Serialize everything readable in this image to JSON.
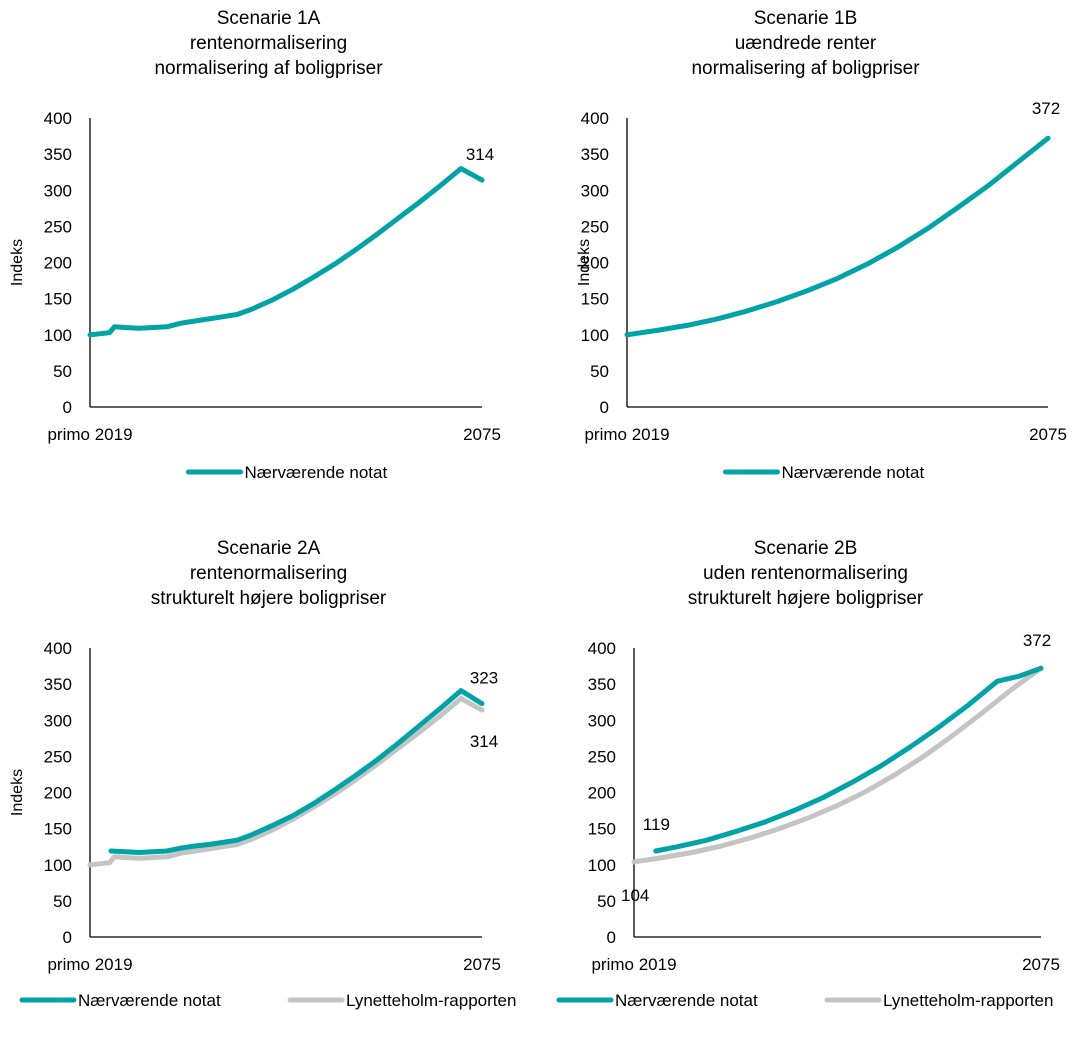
{
  "page": {
    "background": "#ffffff"
  },
  "colors": {
    "primary": "#00a3a6",
    "secondary": "#c4c4c4"
  },
  "chart_data": [
    {
      "type": "line",
      "title": [
        "Scenarie 1A",
        "rentenormalisering",
        "normalisering af boligpriser"
      ],
      "ylabel": "Indeks",
      "ylim": [
        0,
        400
      ],
      "yticks": [
        "0",
        "50",
        "100",
        "150",
        "200",
        "250",
        "300",
        "350",
        "400"
      ],
      "xlim": [
        2019,
        2075
      ],
      "xticks": [
        "primo 2019",
        "2075"
      ],
      "series": [
        {
          "name": "Nærværende notat",
          "color": "#00a3a6",
          "x": [
            2019,
            2021,
            2021.8,
            2022.5,
            2024,
            2026,
            2028,
            2030,
            2032,
            2034,
            2036,
            2038,
            2040,
            2042,
            2045,
            2048,
            2051,
            2054,
            2057,
            2060,
            2063,
            2066,
            2069,
            2072,
            2075
          ],
          "values": [
            100,
            102,
            103,
            111,
            110,
            109,
            110,
            111,
            116,
            119,
            122,
            125,
            128,
            135,
            148,
            163,
            180,
            198,
            218,
            239,
            261,
            283,
            306,
            330,
            314
          ]
        }
      ],
      "annotations": [
        {
          "text": "314",
          "x": 2075,
          "y": 314
        }
      ],
      "legend": "bottom"
    },
    {
      "type": "line",
      "title": [
        "Scenarie 1B",
        "uændrede renter",
        "normalisering af boligpriser"
      ],
      "ylabel": "Indeks",
      "ylim": [
        0,
        400
      ],
      "yticks": [
        "0",
        "50",
        "100",
        "150",
        "200",
        "250",
        "300",
        "350",
        "400"
      ],
      "xlim": [
        2019,
        2075
      ],
      "xticks": [
        "primo 2019",
        "2075"
      ],
      "series": [
        {
          "name": "Nærværende notat",
          "color": "#00a3a6",
          "x": [
            2019,
            2023,
            2027,
            2031,
            2035,
            2039,
            2043,
            2047,
            2051,
            2055,
            2059,
            2063,
            2067,
            2071,
            2075
          ],
          "values": [
            100,
            106,
            113,
            122,
            133,
            146,
            161,
            178,
            198,
            221,
            247,
            276,
            306,
            339,
            372
          ]
        }
      ],
      "annotations": [
        {
          "text": "372",
          "x": 2075,
          "y": 372
        }
      ],
      "legend": "bottom"
    },
    {
      "type": "line",
      "title": [
        "Scenarie 2A",
        "rentenormalisering",
        "strukturelt højere boligpriser"
      ],
      "ylabel": "Indeks",
      "ylim": [
        0,
        400
      ],
      "yticks": [
        "0",
        "50",
        "100",
        "150",
        "200",
        "250",
        "300",
        "350",
        "400"
      ],
      "xlim": [
        2019,
        2075
      ],
      "xticks": [
        "primo 2019",
        "2075"
      ],
      "series": [
        {
          "name": "Nærværende notat",
          "color": "#00a3a6",
          "x": [
            2022,
            2024,
            2026,
            2028,
            2030,
            2032,
            2034,
            2036,
            2038,
            2040,
            2042,
            2045,
            2048,
            2051,
            2054,
            2057,
            2060,
            2063,
            2066,
            2069,
            2072,
            2075
          ],
          "values": [
            119,
            118,
            117,
            118,
            119,
            123,
            126,
            128,
            131,
            134,
            141,
            154,
            168,
            185,
            204,
            224,
            245,
            268,
            292,
            316,
            341,
            323
          ]
        },
        {
          "name": "Lynetteholm-rapporten",
          "color": "#c4c4c4",
          "x": [
            2019,
            2021,
            2021.8,
            2022.5,
            2024,
            2026,
            2028,
            2030,
            2032,
            2034,
            2036,
            2038,
            2040,
            2042,
            2045,
            2048,
            2051,
            2054,
            2057,
            2060,
            2063,
            2066,
            2069,
            2072,
            2075
          ],
          "values": [
            100,
            102,
            103,
            111,
            110,
            109,
            110,
            111,
            116,
            119,
            122,
            125,
            128,
            135,
            148,
            163,
            180,
            198,
            218,
            239,
            261,
            283,
            306,
            330,
            314
          ]
        }
      ],
      "annotations": [
        {
          "text": "323",
          "x": 2075,
          "y": 323
        },
        {
          "text": "314",
          "x": 2075,
          "y": 314
        }
      ],
      "legend": "bottom"
    },
    {
      "type": "line",
      "title": [
        "Scenarie 2B",
        "uden rentenormalisering",
        "strukturelt højere boligpriser"
      ],
      "ylabel": "",
      "ylim": [
        0,
        400
      ],
      "yticks": [
        "0",
        "50",
        "100",
        "150",
        "200",
        "250",
        "300",
        "350",
        "400"
      ],
      "xlim": [
        2019,
        2075
      ],
      "xticks": [
        "primo 2019",
        "2075"
      ],
      "series": [
        {
          "name": "Nærværende notat",
          "color": "#00a3a6",
          "x": [
            2022,
            2025,
            2029,
            2033,
            2037,
            2041,
            2045,
            2049,
            2053,
            2057,
            2061,
            2065,
            2069,
            2072,
            2075
          ],
          "values": [
            119,
            125,
            134,
            146,
            159,
            175,
            193,
            214,
            237,
            263,
            291,
            321,
            354,
            361,
            372
          ]
        },
        {
          "name": "Lynetteholm-rapporten",
          "color": "#c4c4c4",
          "x": [
            2019,
            2023,
            2027,
            2031,
            2035,
            2039,
            2043,
            2047,
            2051,
            2055,
            2059,
            2063,
            2067,
            2071,
            2075
          ],
          "values": [
            104,
            110,
            117,
            126,
            137,
            150,
            165,
            182,
            202,
            225,
            251,
            280,
            311,
            343,
            372
          ]
        }
      ],
      "annotations": [
        {
          "text": "372",
          "x": 2075,
          "y": 372
        },
        {
          "text": "119",
          "x": 2022,
          "y": 119
        },
        {
          "text": "104",
          "x": 2019,
          "y": 104
        }
      ],
      "legend": "bottom"
    }
  ]
}
